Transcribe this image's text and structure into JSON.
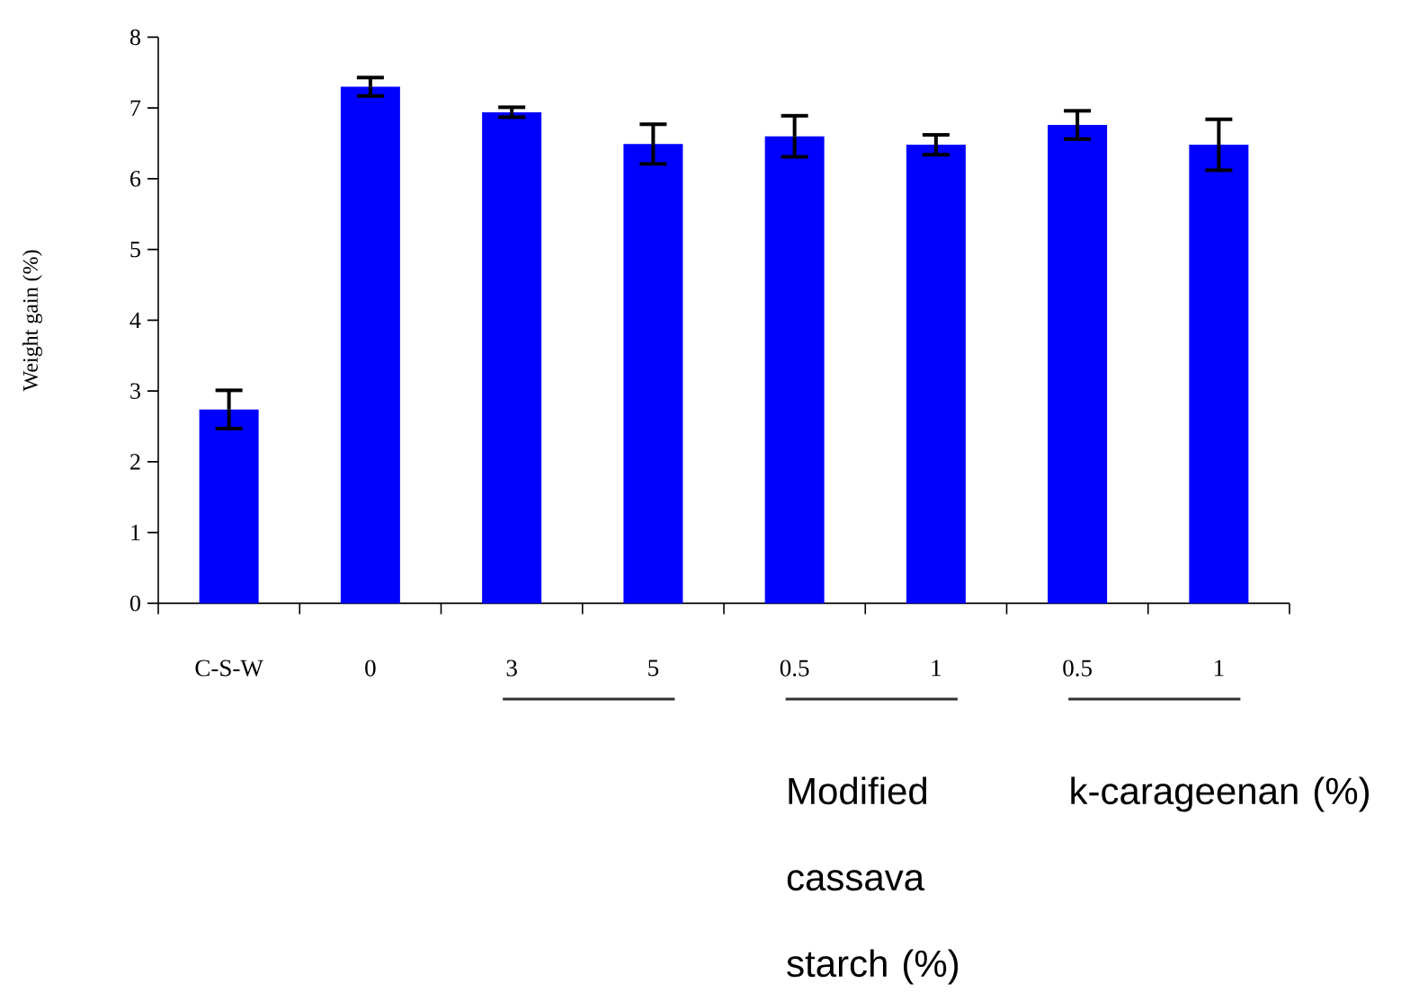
{
  "chart_data": {
    "type": "bar",
    "ylabel": "Weight gain (%)",
    "categories": [
      "C-S-W",
      "0",
      "3",
      "5",
      "0.5",
      "1",
      "0.5",
      "1"
    ],
    "values": [
      2.74,
      7.3,
      6.94,
      6.49,
      6.6,
      6.48,
      6.76,
      6.48
    ],
    "errors": [
      0.27,
      0.13,
      0.07,
      0.28,
      0.29,
      0.14,
      0.2,
      0.36
    ],
    "color": "#0000ff",
    "ylim": [
      0,
      8
    ],
    "yticks": [
      0,
      1,
      2,
      3,
      4,
      5,
      6,
      7,
      8
    ],
    "annotations": [
      "Modified cassava starch (%)",
      "k-carageenan (%)"
    ]
  }
}
